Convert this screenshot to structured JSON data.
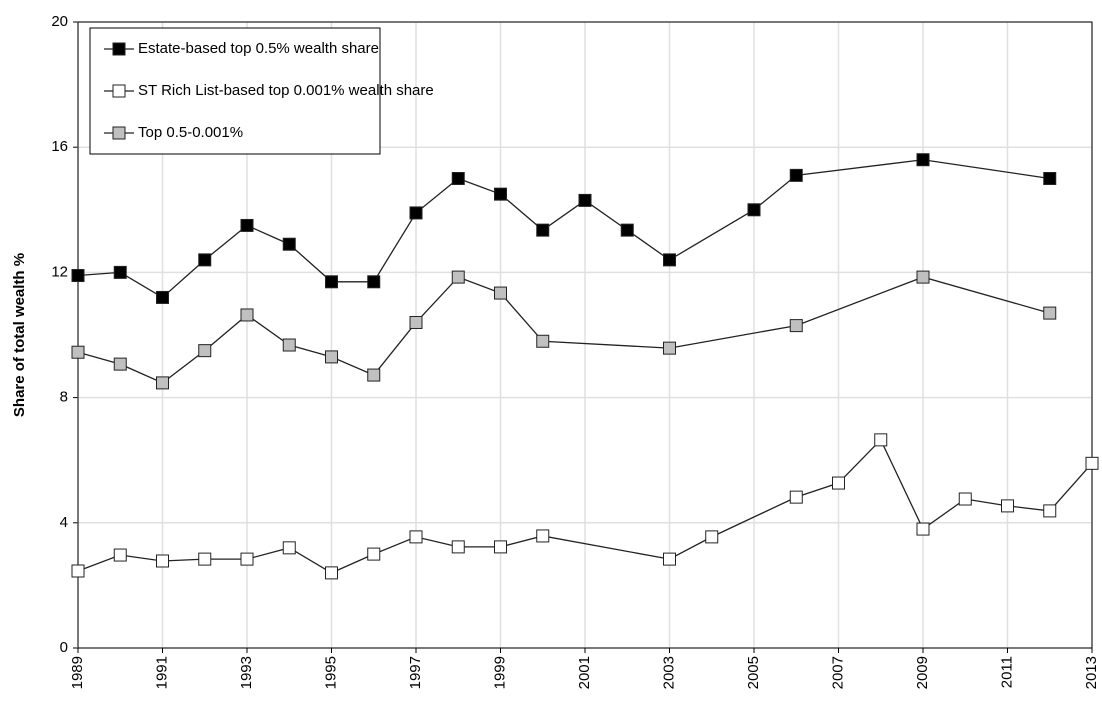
{
  "chart_data": {
    "type": "line",
    "y_label": "Share of total wealth %",
    "xlim": [
      1989,
      2013
    ],
    "xticks": [
      1989,
      1991,
      1993,
      1995,
      1997,
      1999,
      2001,
      2003,
      2005,
      2007,
      2009,
      2011,
      2013
    ],
    "ylim": [
      0,
      20
    ],
    "yticks": [
      0,
      4,
      8,
      12,
      16,
      20
    ],
    "grid": true,
    "legend": "top-left",
    "line_color": "#222222",
    "series": [
      {
        "name": "Estate-based top 0.5% wealth share",
        "color": "#000000",
        "x": [
          1989,
          1990,
          1991,
          1992,
          1993,
          1994,
          1995,
          1996,
          1997,
          1998,
          1999,
          2000,
          2001,
          2002,
          2003,
          2005,
          2006,
          2009,
          2012
        ],
        "values": [
          11.9,
          12.0,
          11.2,
          12.4,
          13.5,
          12.9,
          11.7,
          11.7,
          13.9,
          15.0,
          14.5,
          13.35,
          14.3,
          13.35,
          12.4,
          14.0,
          15.1,
          15.6,
          15.0
        ]
      },
      {
        "name": "ST Rich List-based top 0.001% wealth share",
        "color": "#ffffff",
        "x": [
          1989,
          1990,
          1991,
          1992,
          1993,
          1994,
          1995,
          1996,
          1997,
          1998,
          1999,
          2000,
          2003,
          2004,
          2006,
          2007,
          2008,
          2009,
          2010,
          2011,
          2012,
          2013
        ],
        "values": [
          2.46,
          2.97,
          2.78,
          2.84,
          2.84,
          3.2,
          2.4,
          3.0,
          3.55,
          3.23,
          3.23,
          3.58,
          2.84,
          3.55,
          4.82,
          5.27,
          6.65,
          3.8,
          4.76,
          4.54,
          4.38,
          5.9
        ]
      },
      {
        "name": "Top 0.5-0.001%",
        "color": "#c0c0c0",
        "x": [
          1989,
          1990,
          1991,
          1992,
          1993,
          1994,
          1995,
          1996,
          1997,
          1998,
          1999,
          2000,
          2003,
          2006,
          2009,
          2012
        ],
        "values": [
          9.45,
          9.07,
          8.47,
          9.5,
          10.64,
          9.68,
          9.3,
          8.72,
          10.4,
          11.85,
          11.34,
          9.8,
          9.58,
          10.3,
          11.85,
          10.7
        ]
      }
    ]
  }
}
